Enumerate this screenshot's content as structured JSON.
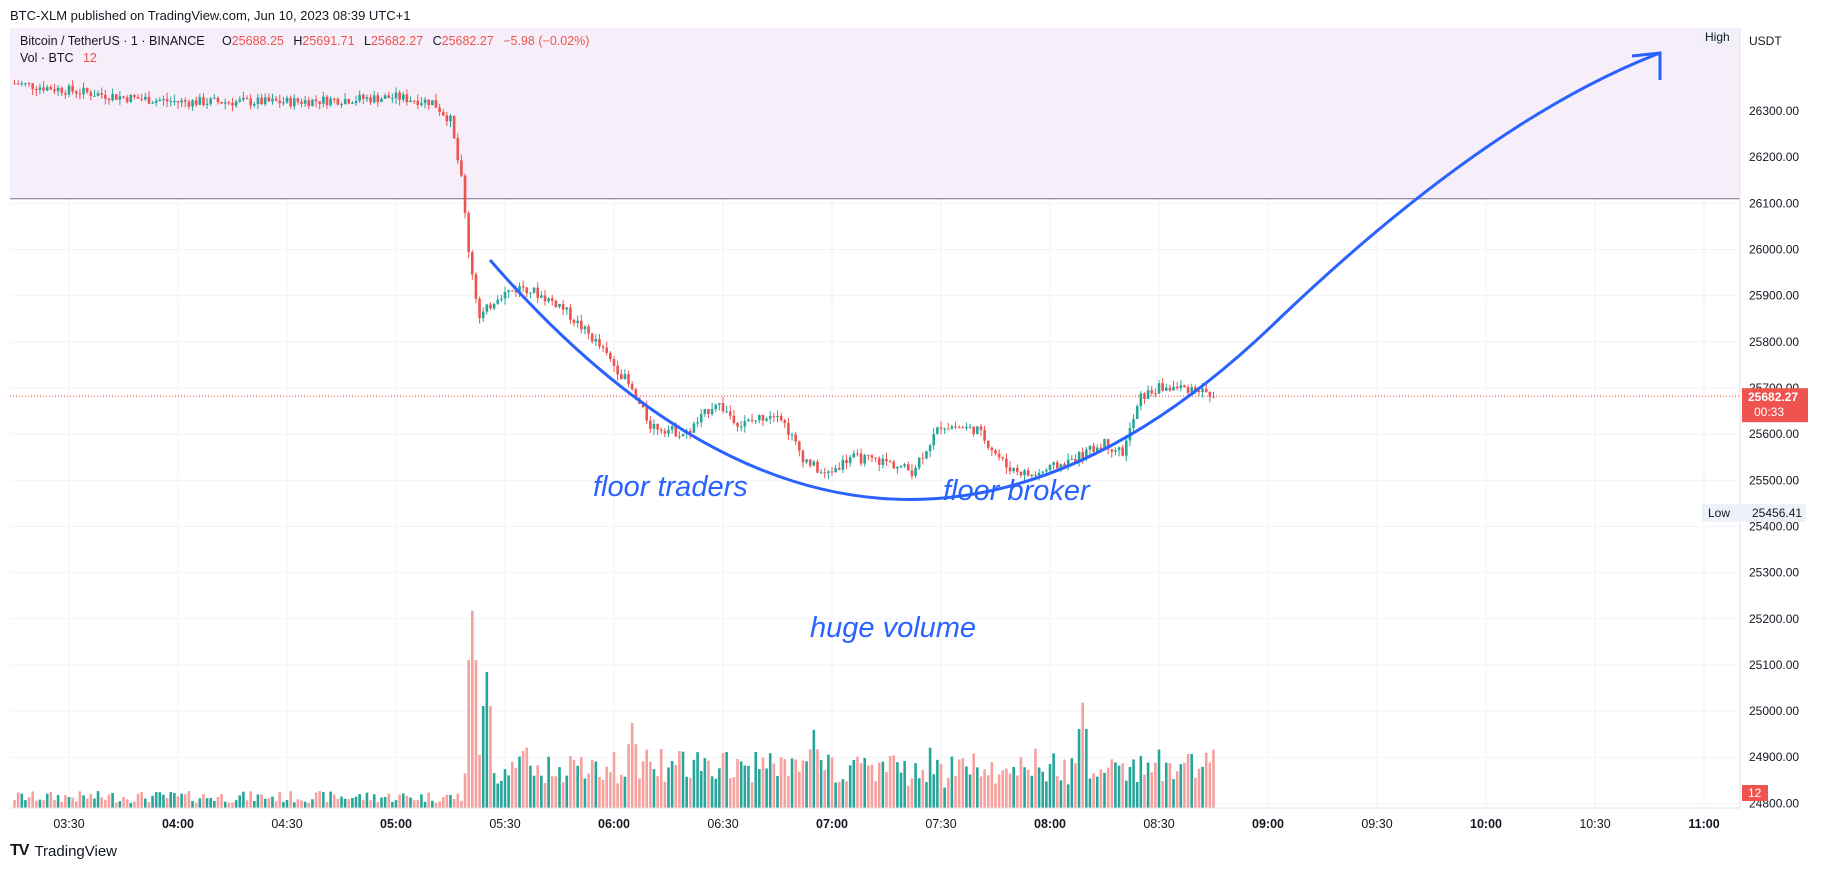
{
  "header": {
    "published_line": "BTC-XLM published on TradingView.com, Jun 10, 2023 08:39 UTC+1"
  },
  "legend": {
    "symbol": "Bitcoin / TetherUS · 1 · BINANCE",
    "o_label": "O",
    "o_value": "25688.25",
    "h_label": "H",
    "h_value": "25691.71",
    "l_label": "L",
    "l_value": "25682.27",
    "c_label": "C",
    "c_value": "25682.27",
    "change": "−5.98 (−0.02%)",
    "vol_label": "Vol · BTC",
    "vol_value": "12"
  },
  "footer": {
    "brand": "TradingView"
  },
  "colors": {
    "up": "#26a69a",
    "down": "#ef5350",
    "up_vol": "#26a69a",
    "down_vol": "#f7a19e",
    "annotation": "#2962ff",
    "price_line": "#e53935",
    "band": "#f3e5f5"
  },
  "chart_data": {
    "type": "candlestick",
    "quote_currency": "USDT",
    "y_ticks": [
      "26300.00",
      "26200.00",
      "26100.00",
      "26000.00",
      "25900.00",
      "25800.00",
      "25700.00",
      "25600.00",
      "25500.00",
      "25400.00",
      "25300.00",
      "25200.00",
      "25100.00",
      "25000.00",
      "24900.00",
      "24800.00"
    ],
    "x_ticks": [
      "03:30",
      "04:00",
      "04:30",
      "05:00",
      "05:30",
      "06:00",
      "06:30",
      "07:00",
      "07:30",
      "08:00",
      "08:30",
      "09:00",
      "09:30",
      "10:00",
      "10:30",
      "11:00"
    ],
    "x_ticks_bold": [
      "04:00",
      "05:00",
      "06:00",
      "07:00",
      "08:00",
      "09:00",
      "10:00",
      "11:00"
    ],
    "ylim": [
      24790,
      26480
    ],
    "high_label": "High",
    "low_label": "Low",
    "low_value": "25456.41",
    "last_price": "25682.27",
    "countdown": "00:33",
    "last_volume": "12",
    "horizontal_level": 26110,
    "annotations": [
      "floor traders",
      "floor broker",
      "huge volume"
    ],
    "price_path": [
      [
        "03:15",
        26360
      ],
      [
        "03:45",
        26330
      ],
      [
        "04:00",
        26320
      ],
      [
        "04:30",
        26320
      ],
      [
        "05:00",
        26330
      ],
      [
        "05:10",
        26320
      ],
      [
        "05:15",
        26280
      ],
      [
        "05:18",
        26150
      ],
      [
        "05:20",
        26000
      ],
      [
        "05:23",
        25850
      ],
      [
        "05:28",
        25900
      ],
      [
        "05:35",
        25920
      ],
      [
        "05:45",
        25880
      ],
      [
        "05:55",
        25800
      ],
      [
        "06:03",
        25720
      ],
      [
        "06:10",
        25620
      ],
      [
        "06:20",
        25600
      ],
      [
        "06:28",
        25670
      ],
      [
        "06:35",
        25620
      ],
      [
        "06:45",
        25650
      ],
      [
        "06:52",
        25550
      ],
      [
        "06:58",
        25510
      ],
      [
        "07:05",
        25550
      ],
      [
        "07:15",
        25540
      ],
      [
        "07:22",
        25520
      ],
      [
        "07:30",
        25620
      ],
      [
        "07:40",
        25610
      ],
      [
        "07:48",
        25530
      ],
      [
        "07:55",
        25510
      ],
      [
        "08:05",
        25540
      ],
      [
        "08:15",
        25580
      ],
      [
        "08:20",
        25560
      ],
      [
        "08:25",
        25680
      ],
      [
        "08:30",
        25700
      ],
      [
        "08:40",
        25700
      ],
      [
        "08:45",
        25682
      ]
    ],
    "volume_peaks": [
      [
        "05:21",
        5.8
      ],
      [
        "05:25",
        4.0
      ],
      [
        "06:05",
        2.5
      ],
      [
        "06:55",
        2.3
      ],
      [
        "08:09",
        3.1
      ]
    ]
  }
}
